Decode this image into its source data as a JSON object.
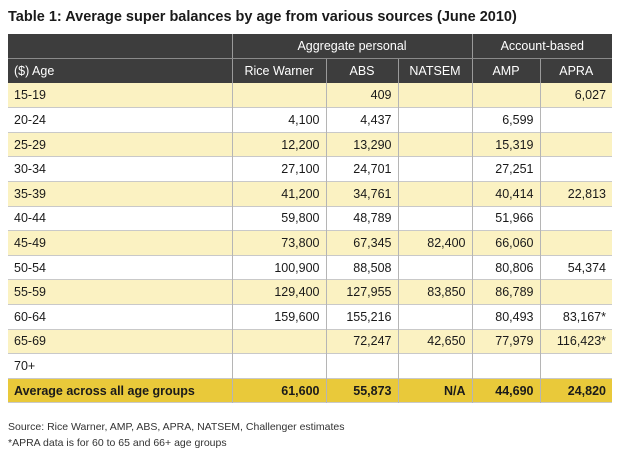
{
  "title": "Table 1: Average super balances by age from various sources (June 2010)",
  "group_headers": {
    "aggregate": "Aggregate personal",
    "account": "Account-based"
  },
  "columns": [
    "($) Age",
    "Rice Warner",
    "ABS",
    "NATSEM",
    "AMP",
    "APRA"
  ],
  "rows": [
    [
      "15-19",
      "",
      "409",
      "",
      "",
      "6,027"
    ],
    [
      "20-24",
      "4,100",
      "4,437",
      "",
      "6,599",
      ""
    ],
    [
      "25-29",
      "12,200",
      "13,290",
      "",
      "15,319",
      ""
    ],
    [
      "30-34",
      "27,100",
      "24,701",
      "",
      "27,251",
      ""
    ],
    [
      "35-39",
      "41,200",
      "34,761",
      "",
      "40,414",
      "22,813"
    ],
    [
      "40-44",
      "59,800",
      "48,789",
      "",
      "51,966",
      ""
    ],
    [
      "45-49",
      "73,800",
      "67,345",
      "82,400",
      "66,060",
      ""
    ],
    [
      "50-54",
      "100,900",
      "88,508",
      "",
      "80,806",
      "54,374"
    ],
    [
      "55-59",
      "129,400",
      "127,955",
      "83,850",
      "86,789",
      ""
    ],
    [
      "60-64",
      "159,600",
      "155,216",
      "",
      "80,493",
      "83,167*"
    ],
    [
      "65-69",
      "",
      "72,247",
      "42,650",
      "77,979",
      "116,423*"
    ],
    [
      "70+",
      "",
      "",
      "",
      "",
      ""
    ]
  ],
  "average_row": [
    "Average across all age groups",
    "61,600",
    "55,873",
    "N/A",
    "44,690",
    "24,820"
  ],
  "source_note": "Source: Rice Warner, AMP, ABS, APRA, NATSEM, Challenger estimates",
  "footnote": "*APRA data is for 60 to 65 and 66+ age groups"
}
